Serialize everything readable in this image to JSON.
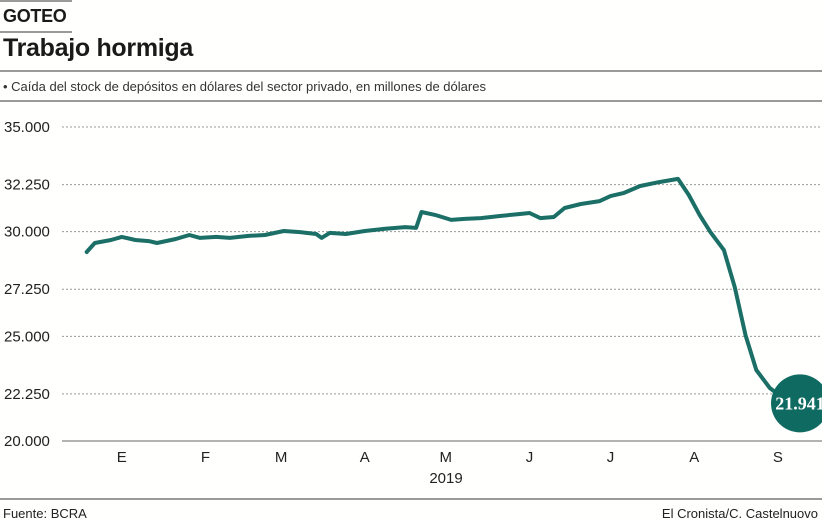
{
  "header": {
    "kicker": "GOTEO",
    "title": "Trabajo hormiga",
    "subtitle": "• Caída del stock de depósitos en dólares del sector privado, en millones de dólares"
  },
  "footer": {
    "source": "Fuente: BCRA",
    "credit": "El Cronista/C. Castelnuovo"
  },
  "colors": {
    "line": "#1b6f66",
    "callout": "#0f6b61",
    "grid": "#9a9a9a"
  },
  "chart_data": {
    "type": "line",
    "title": "Trabajo hormiga",
    "subtitle": "Caída del stock de depósitos en dólares del sector privado, en millones de dólares",
    "ylim": [
      20000,
      35000
    ],
    "yticks": [
      35000,
      32250,
      30000,
      27250,
      25000,
      22250,
      20000
    ],
    "ytick_labels": [
      "35.000",
      "32.250",
      "30.000",
      "27.250",
      "25.000",
      "22.250",
      "20.000"
    ],
    "xtick_labels": [
      "E",
      "F",
      "M",
      "A",
      "M",
      "J",
      "J",
      "A",
      "S"
    ],
    "xlabel": "2019",
    "grid": true,
    "callout": {
      "label": "21.941",
      "value": 21941,
      "date": "2019-09-18"
    },
    "points": [
      [
        "2019-01-02",
        29030
      ],
      [
        "2019-01-05",
        29460
      ],
      [
        "2019-01-11",
        29600
      ],
      [
        "2019-01-15",
        29750
      ],
      [
        "2019-01-20",
        29600
      ],
      [
        "2019-01-25",
        29550
      ],
      [
        "2019-01-28",
        29460
      ],
      [
        "2019-02-04",
        29650
      ],
      [
        "2019-02-09",
        29840
      ],
      [
        "2019-02-13",
        29700
      ],
      [
        "2019-02-19",
        29750
      ],
      [
        "2019-02-24",
        29700
      ],
      [
        "2019-03-03",
        29800
      ],
      [
        "2019-03-09",
        29840
      ],
      [
        "2019-03-16",
        30030
      ],
      [
        "2019-03-22",
        29980
      ],
      [
        "2019-03-28",
        29890
      ],
      [
        "2019-03-30",
        29700
      ],
      [
        "2019-04-02",
        29940
      ],
      [
        "2019-04-08",
        29890
      ],
      [
        "2019-04-15",
        30030
      ],
      [
        "2019-04-22",
        30130
      ],
      [
        "2019-04-30",
        30220
      ],
      [
        "2019-05-04",
        30180
      ],
      [
        "2019-05-06",
        30940
      ],
      [
        "2019-05-11",
        30800
      ],
      [
        "2019-05-17",
        30560
      ],
      [
        "2019-05-22",
        30610
      ],
      [
        "2019-05-28",
        30650
      ],
      [
        "2019-06-04",
        30750
      ],
      [
        "2019-06-11",
        30840
      ],
      [
        "2019-06-15",
        30890
      ],
      [
        "2019-06-19",
        30650
      ],
      [
        "2019-06-24",
        30700
      ],
      [
        "2019-06-28",
        31130
      ],
      [
        "2019-07-04",
        31320
      ],
      [
        "2019-07-11",
        31460
      ],
      [
        "2019-07-15",
        31700
      ],
      [
        "2019-07-20",
        31850
      ],
      [
        "2019-07-26",
        32180
      ],
      [
        "2019-08-02",
        32370
      ],
      [
        "2019-08-09",
        32520
      ],
      [
        "2019-08-13",
        31750
      ],
      [
        "2019-08-17",
        30800
      ],
      [
        "2019-08-21",
        29980
      ],
      [
        "2019-08-26",
        29120
      ],
      [
        "2019-08-30",
        27360
      ],
      [
        "2019-09-03",
        25060
      ],
      [
        "2019-09-07",
        23390
      ],
      [
        "2019-09-12",
        22530
      ],
      [
        "2019-09-18",
        21941
      ]
    ]
  }
}
